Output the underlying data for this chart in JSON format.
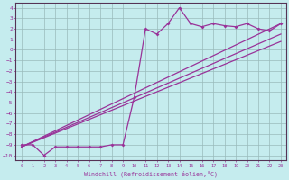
{
  "xlabel": "Windchill (Refroidissement éolien,°C)",
  "background_color": "#c5ecee",
  "line_color": "#993399",
  "grid_color": "#99bbbb",
  "xlim": [
    -0.5,
    23.5
  ],
  "ylim": [
    -10.5,
    4.5
  ],
  "xticks": [
    0,
    1,
    2,
    3,
    4,
    5,
    6,
    7,
    8,
    9,
    10,
    11,
    12,
    13,
    14,
    15,
    16,
    17,
    18,
    19,
    20,
    21,
    22,
    23
  ],
  "yticks": [
    4,
    3,
    2,
    1,
    0,
    -1,
    -2,
    -3,
    -4,
    -5,
    -6,
    -7,
    -8,
    -9,
    -10
  ],
  "jagged_x": [
    0,
    1,
    2,
    3,
    4,
    5,
    6,
    7,
    8,
    9,
    10,
    11,
    12,
    13,
    14,
    15,
    16,
    17,
    18,
    19,
    20,
    21,
    22,
    23
  ],
  "jagged_y": [
    -9,
    -9,
    -10,
    -9.2,
    -9.2,
    -9.2,
    -9.2,
    -9.2,
    -9.0,
    -9.0,
    -4.5,
    2.0,
    1.5,
    2.5,
    4.0,
    2.5,
    2.2,
    2.5,
    2.3,
    2.2,
    2.5,
    2.0,
    1.8,
    2.5
  ],
  "line1_x": [
    0,
    23
  ],
  "line1_y": [
    -9.2,
    2.5
  ],
  "line2_x": [
    0,
    23
  ],
  "line2_y": [
    -9.2,
    1.5
  ],
  "line3_x": [
    0,
    23
  ],
  "line3_y": [
    -9.2,
    0.8
  ]
}
